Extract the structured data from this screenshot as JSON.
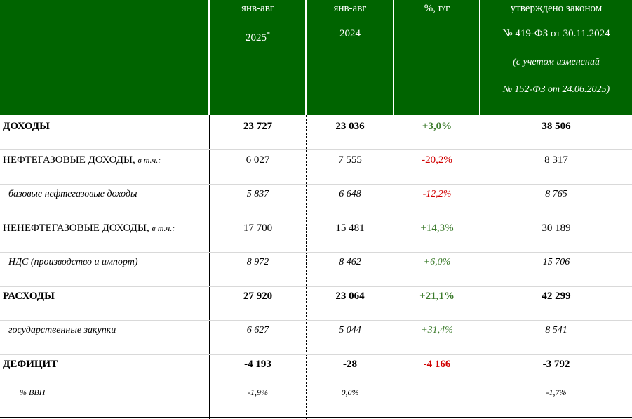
{
  "header": {
    "col1_line1": "янв-авг",
    "col1_line2": "2025",
    "col1_sup": "*",
    "col2_line1": "янв-авг",
    "col2_line2": "2024",
    "col3_line1": "%, г/г",
    "col4_line1": "утверждено законом",
    "col4_line2": "№ 419-ФЗ от 30.11.2024",
    "col4_line3": "(с учетом изменений",
    "col4_line4": "№ 152-ФЗ от 24.06.2025)"
  },
  "rows": [
    {
      "label": "ДОХОДЫ",
      "label_sub": "",
      "v2025": "23 727",
      "v2024": "23 036",
      "pct": "+3,0%",
      "law": "38 506"
    },
    {
      "label": "НЕФТЕГАЗОВЫЕ ДОХОДЫ,",
      "label_sub": "в т.ч.:",
      "v2025": "6 027",
      "v2024": "7 555",
      "pct": "-20,2%",
      "law": "8 317"
    },
    {
      "label": "базовые нефтегазовые доходы",
      "label_sub": "",
      "v2025": "5 837",
      "v2024": "6 648",
      "pct": "-12,2%",
      "law": "8 765"
    },
    {
      "label": "НЕНЕФТЕГАЗОВЫЕ ДОХОДЫ,",
      "label_sub": "в т.ч.:",
      "v2025": "17 700",
      "v2024": "15 481",
      "pct": "+14,3%",
      "law": "30 189"
    },
    {
      "label": "НДС (производство и импорт)",
      "label_sub": "",
      "v2025": "8 972",
      "v2024": "8 462",
      "pct": "+6,0%",
      "law": "15 706"
    },
    {
      "label": "РАСХОДЫ",
      "label_sub": "",
      "v2025": "27 920",
      "v2024": "23 064",
      "pct": "+21,1%",
      "law": "42 299"
    },
    {
      "label": "государственные закупки",
      "label_sub": "",
      "v2025": "6 627",
      "v2024": "5 044",
      "pct": "+31,4%",
      "law": "8 541"
    },
    {
      "label": "ДЕФИЦИТ",
      "label_sub": "",
      "v2025": "-4 193",
      "v2024": "-28",
      "pct": "-4 166",
      "law": "-3 792"
    },
    {
      "label": "% ВВП",
      "label_sub": "",
      "v2025": "-1,9%",
      "v2024": "0,0%",
      "pct": "",
      "law": "-1,7%"
    }
  ],
  "colors": {
    "header_bg": "#006400",
    "positive": "#3a7a2a",
    "negative": "#d00000"
  }
}
